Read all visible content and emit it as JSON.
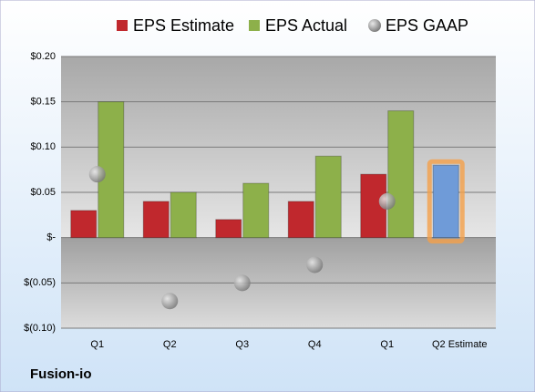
{
  "chart_data": {
    "type": "bar",
    "footer": "Fusion-io",
    "categories": [
      "Q1",
      "Q2",
      "Q3",
      "Q4",
      "Q1",
      "Q2 Estimate"
    ],
    "series": [
      {
        "name": "EPS Estimate",
        "color": "#c0282d",
        "point_colors": [
          "#c0282d",
          "#c0282d",
          "#c0282d",
          "#c0282d",
          "#c0282d",
          "#6f9bd8"
        ],
        "values": [
          0.03,
          0.04,
          0.02,
          0.04,
          0.07,
          0.08
        ]
      },
      {
        "name": "EPS Actual",
        "color": "#8db04a",
        "values": [
          0.15,
          0.05,
          0.06,
          0.09,
          0.14,
          null
        ]
      },
      {
        "name": "EPS GAAP",
        "color": "#9a9a9a",
        "marker": "circle",
        "values": [
          0.07,
          -0.07,
          -0.05,
          -0.03,
          0.04,
          null
        ]
      }
    ],
    "ylim": [
      -0.1,
      0.2
    ],
    "yticks": [
      {
        "value": -0.1,
        "label": "$(0.10)"
      },
      {
        "value": -0.05,
        "label": "$(0.05)"
      },
      {
        "value": 0,
        "label": "$-"
      },
      {
        "value": 0.05,
        "label": "$0.05"
      },
      {
        "value": 0.1,
        "label": "$0.10"
      },
      {
        "value": 0.15,
        "label": "$0.15"
      },
      {
        "value": 0.2,
        "label": "$0.20"
      }
    ],
    "grid": true,
    "legend": "top"
  }
}
